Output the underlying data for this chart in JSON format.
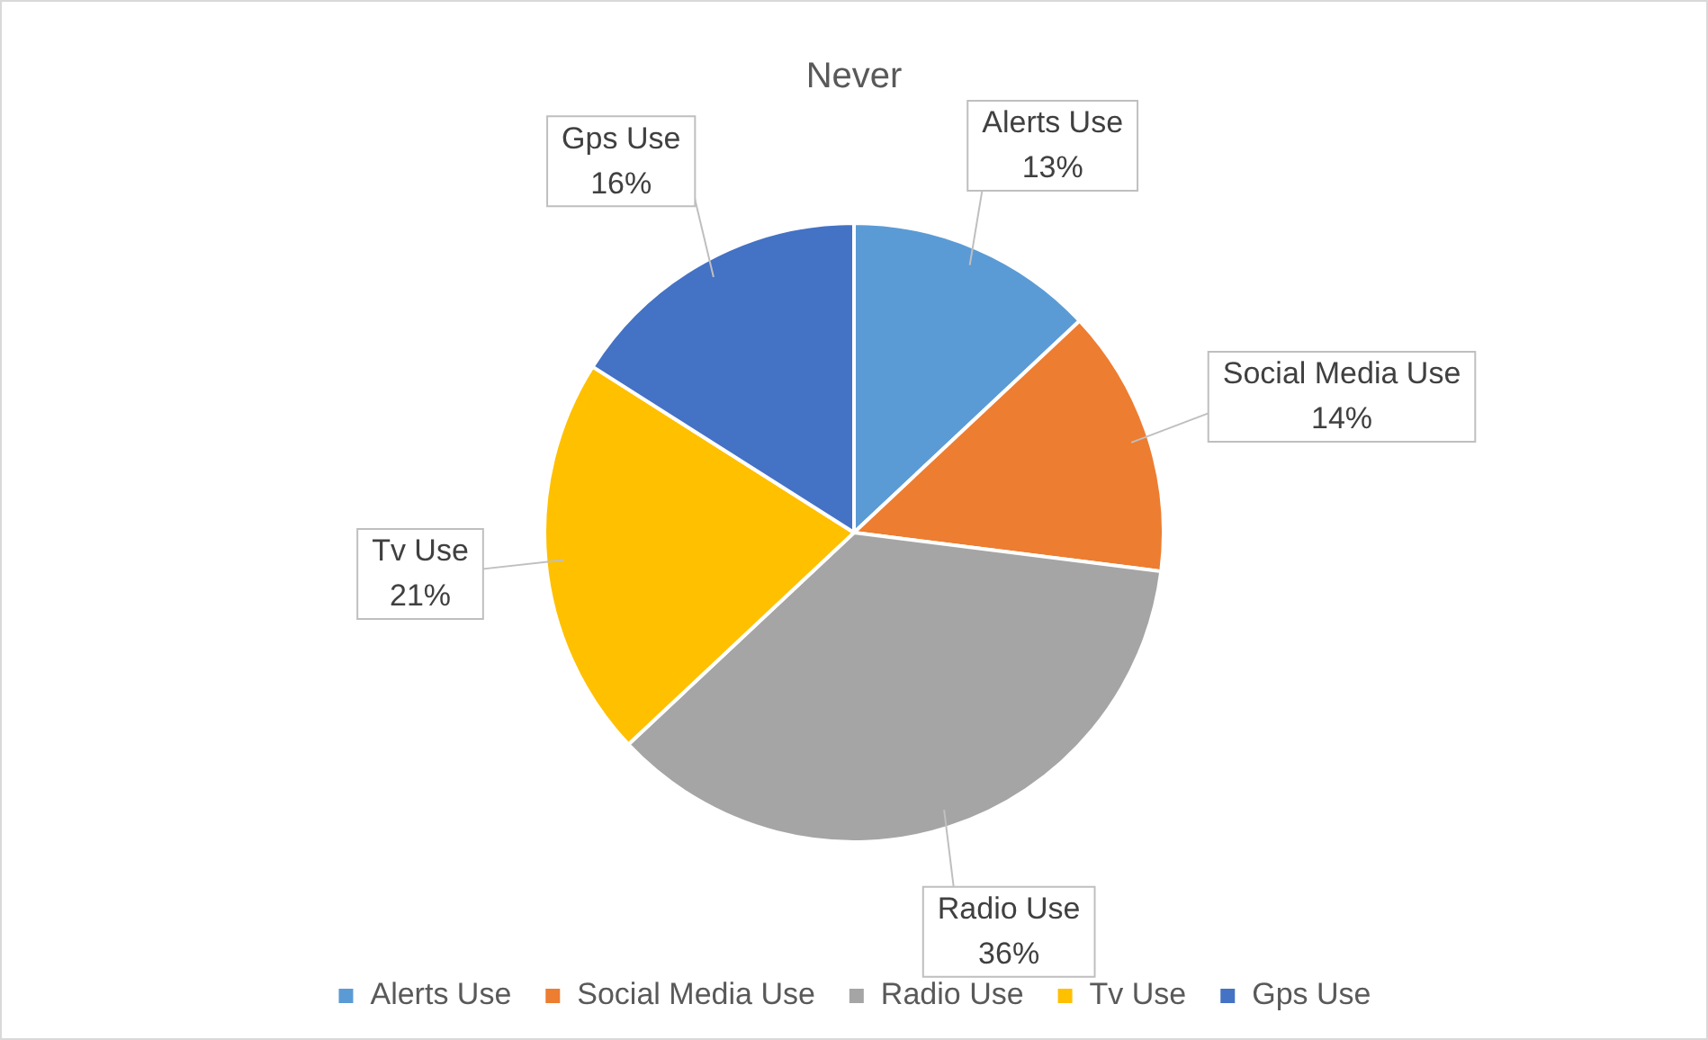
{
  "chart_data": {
    "type": "pie",
    "title": "Never",
    "categories": [
      "Alerts Use",
      "Social Media Use",
      "Radio Use",
      "Tv Use",
      "Gps Use"
    ],
    "values": [
      13,
      14,
      36,
      21,
      16
    ],
    "value_labels": [
      "13%",
      "14%",
      "36%",
      "21%",
      "16%"
    ],
    "colors": [
      "#5b9bd5",
      "#ed7d31",
      "#a5a5a5",
      "#ffc000",
      "#4472c4"
    ],
    "legend": "bottom"
  }
}
